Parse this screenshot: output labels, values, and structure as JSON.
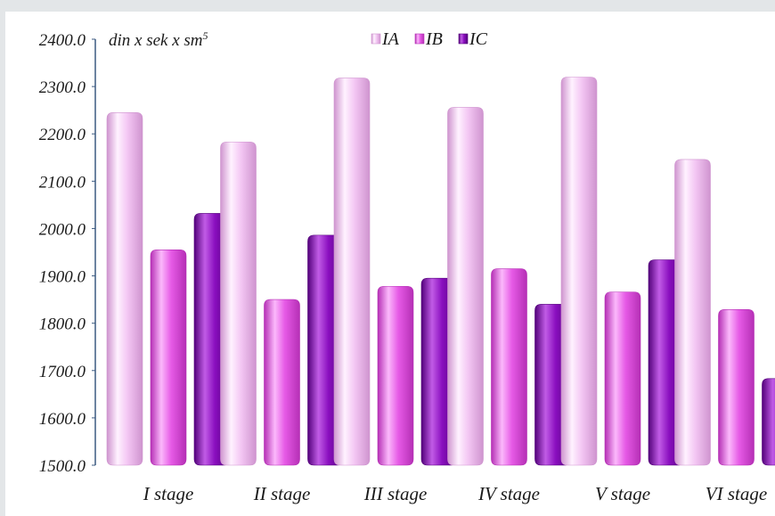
{
  "chart_data": {
    "type": "bar",
    "unit_label": "din x sek x sm",
    "unit_superscript": "5",
    "categories": [
      "I stage",
      "II stage",
      "III stage",
      "IV stage",
      "V stage",
      "VI stage"
    ],
    "series": [
      {
        "name": "IA",
        "values": [
          2245,
          2183,
          2318,
          2256,
          2320,
          2146
        ]
      },
      {
        "name": "IB",
        "values": [
          1955,
          1850,
          1878,
          1915,
          1866,
          1829
        ]
      },
      {
        "name": "IC",
        "values": [
          2032,
          1986,
          1895,
          1840,
          1934,
          1683
        ]
      }
    ],
    "ylim": [
      1500,
      2400
    ],
    "yticks": [
      "1500.0",
      "1600.0",
      "1700.0",
      "1800.0",
      "1900.0",
      "2000.0",
      "2100.0",
      "2200.0",
      "2300.0",
      "2400.0"
    ],
    "legend_position": "top",
    "grid": false,
    "colors": {
      "IA": {
        "base": "#f3c6f3",
        "light": "#fff2ff",
        "dark": "#cf94cf"
      },
      "IB": {
        "base": "#e65ae6",
        "light": "#fbb8fb",
        "dark": "#b52fb5"
      },
      "IC": {
        "base": "#8a0fbf",
        "light": "#c15ce6",
        "dark": "#52007a"
      }
    }
  }
}
